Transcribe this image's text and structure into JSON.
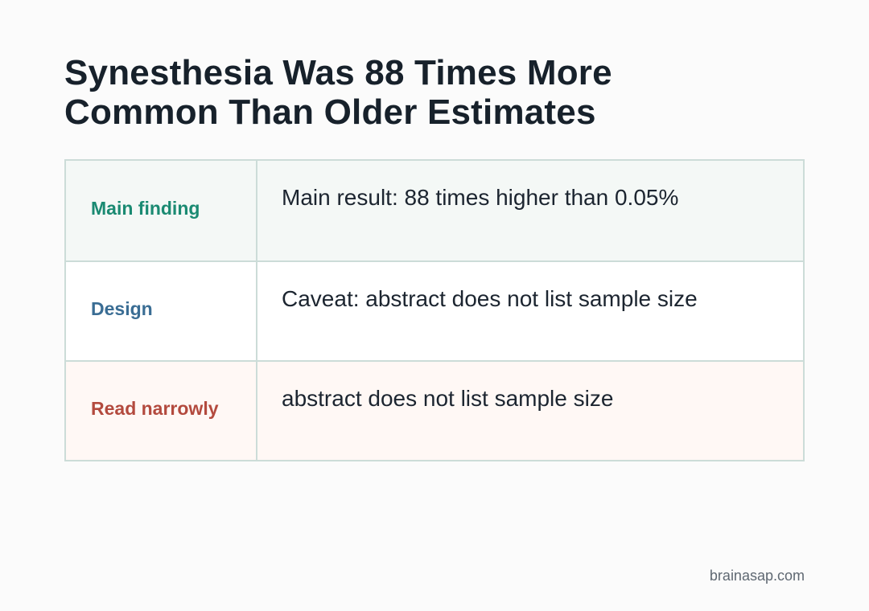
{
  "title": {
    "line1": "Synesthesia Was 88 Times More",
    "line2": "Common Than Older Estimates"
  },
  "table": {
    "rows": [
      {
        "label": "Main finding",
        "label_color": "#1a8a72",
        "background": "#f4f8f6",
        "value": "Main result: 88 times higher than 0.05%"
      },
      {
        "label": "Design",
        "label_color": "#3a6d94",
        "background": "#ffffff",
        "value": "Caveat: abstract does not list sample size"
      },
      {
        "label": "Read narrowly",
        "label_color": "#b34a3e",
        "background": "#fff8f5",
        "value": "abstract does not list sample size"
      }
    ]
  },
  "footer": {
    "source": "brainasap.com"
  }
}
